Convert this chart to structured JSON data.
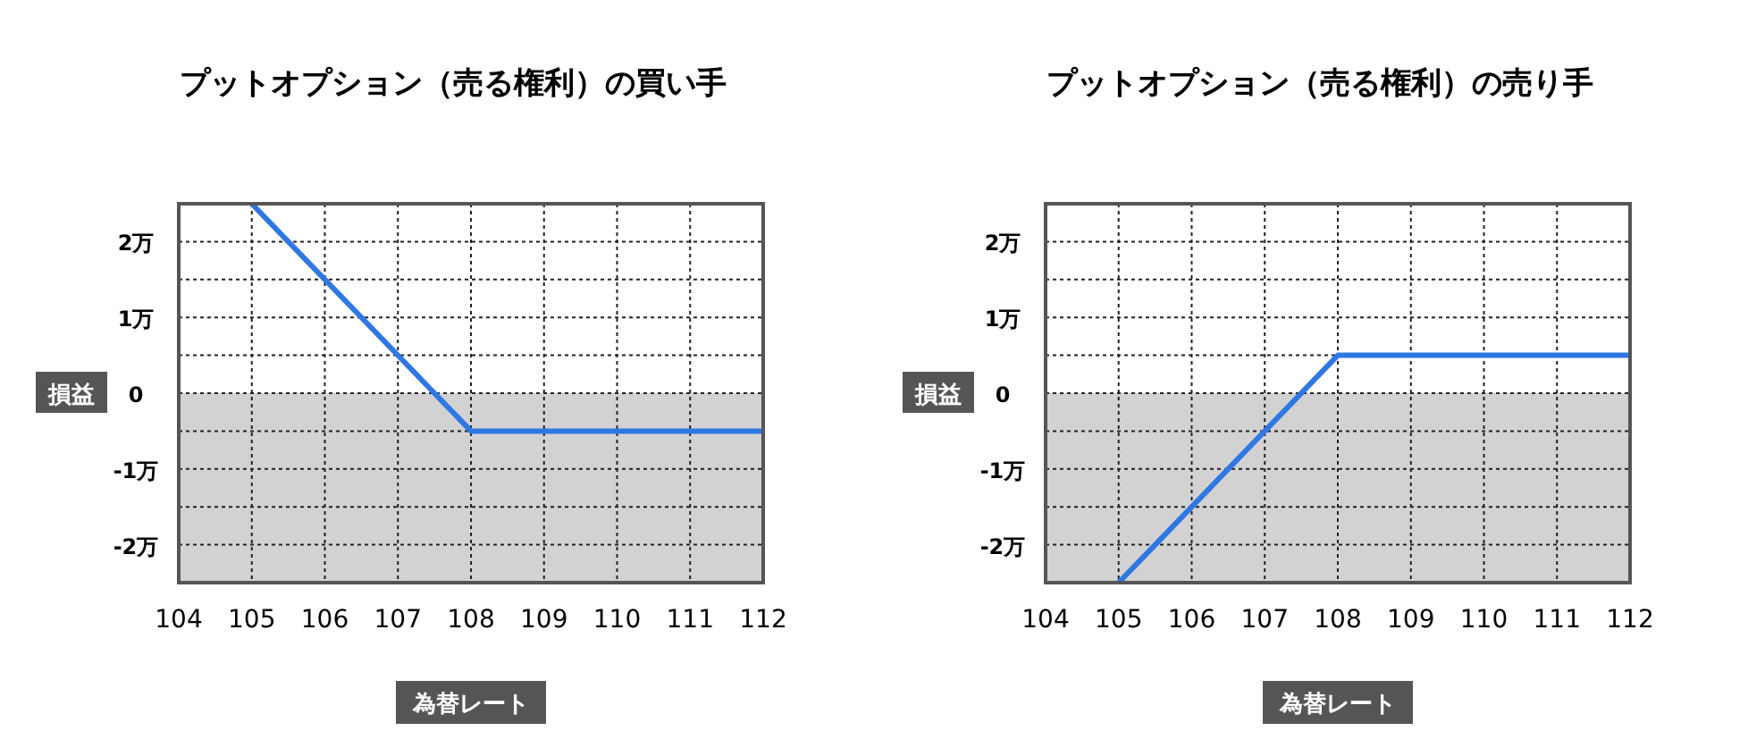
{
  "chart_data": [
    {
      "type": "line",
      "title": "プットオプション（売る権利）の買い手",
      "xlabel": "為替レート",
      "ylabel": "損益",
      "x": [
        105,
        108,
        112
      ],
      "series": [
        {
          "color": "#2f78e3",
          "values": [
            2.5,
            -0.5,
            -0.5
          ]
        }
      ],
      "xlim": [
        104,
        112
      ],
      "xticks": [
        104,
        105,
        106,
        107,
        108,
        109,
        110,
        111,
        112
      ],
      "ylim": [
        -2.5,
        2.5
      ],
      "yticks": [
        {
          "value": -2,
          "label": "-2万"
        },
        {
          "value": -1.5,
          "label": null
        },
        {
          "value": -1,
          "label": "-1万"
        },
        {
          "value": -0.5,
          "label": null
        },
        0,
        {
          "value": 0.5,
          "label": null
        },
        {
          "value": 1,
          "label": "1万"
        },
        {
          "value": 1.5,
          "label": null
        },
        {
          "value": 2,
          "label": "2万"
        }
      ],
      "bands": [
        {
          "axis": "y",
          "from": -2.5,
          "to": 0,
          "color": "#d3d2d3"
        }
      ],
      "grid": true,
      "line_style": "solid",
      "marker": "none"
    },
    {
      "type": "line",
      "title": "プットオプション（売る権利）の売り手",
      "xlabel": "為替レート",
      "ylabel": "損益",
      "x": [
        105,
        108,
        112
      ],
      "series": [
        {
          "color": "#2f78e3",
          "values": [
            -2.5,
            0.5,
            0.5
          ]
        }
      ],
      "xlim": [
        104,
        112
      ],
      "xticks": [
        104,
        105,
        106,
        107,
        108,
        109,
        110,
        111,
        112
      ],
      "ylim": [
        -2.5,
        2.5
      ],
      "yticks": [
        {
          "value": -2,
          "label": "-2万"
        },
        {
          "value": -1.5,
          "label": null
        },
        {
          "value": -1,
          "label": "-1万"
        },
        {
          "value": -0.5,
          "label": null
        },
        0,
        {
          "value": 0.5,
          "label": null
        },
        {
          "value": 1,
          "label": "1万"
        },
        {
          "value": 1.5,
          "label": null
        },
        {
          "value": 2,
          "label": "2万"
        }
      ],
      "bands": [
        {
          "axis": "y",
          "from": -2.5,
          "to": 0,
          "color": "#d3d2d3"
        }
      ],
      "grid": true,
      "line_style": "solid",
      "marker": "none"
    }
  ]
}
